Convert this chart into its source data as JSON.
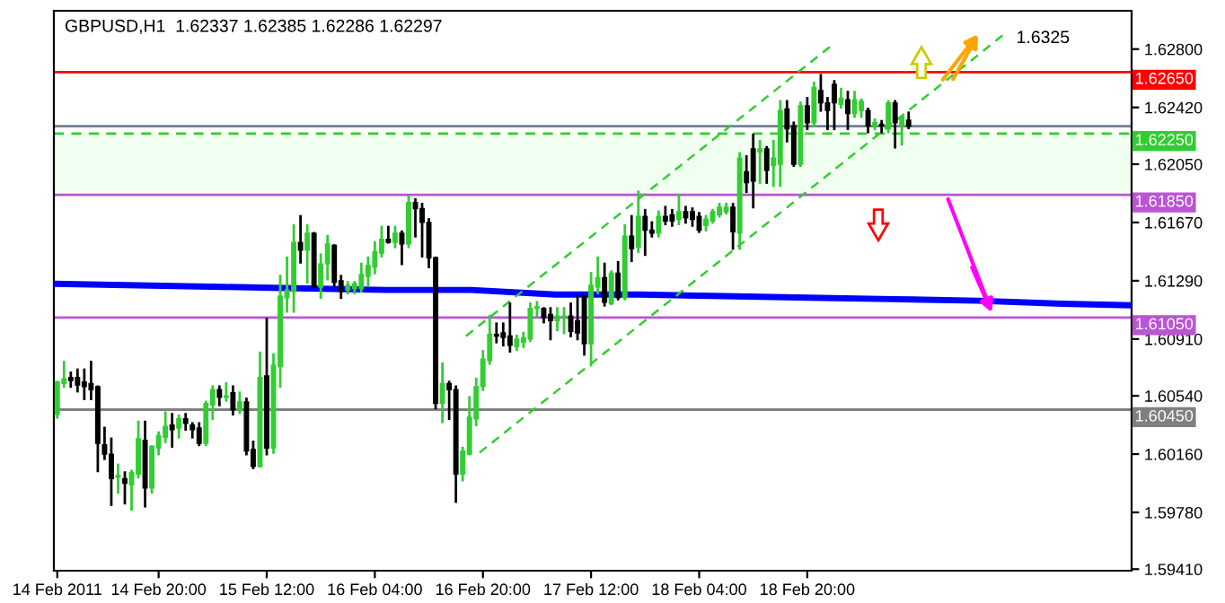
{
  "chart_data": {
    "type": "candlestick",
    "title": "GBPUSD,H1  1.62337 1.62385 1.62286 1.62297",
    "x": [
      "2011-02-14T05:00",
      "2011-02-14T06:00",
      "2011-02-14T07:00",
      "2011-02-14T08:00",
      "2011-02-14T09:00",
      "2011-02-14T10:00",
      "2011-02-14T11:00",
      "2011-02-14T12:00",
      "2011-02-14T13:00",
      "2011-02-14T14:00",
      "2011-02-14T15:00",
      "2011-02-14T16:00",
      "2011-02-14T17:00",
      "2011-02-14T18:00",
      "2011-02-14T19:00",
      "2011-02-14T20:00",
      "2011-02-14T21:00",
      "2011-02-14T22:00",
      "2011-02-14T23:00",
      "2011-02-15T00:00",
      "2011-02-15T01:00",
      "2011-02-15T02:00",
      "2011-02-15T03:00",
      "2011-02-15T04:00",
      "2011-02-15T05:00",
      "2011-02-15T06:00",
      "2011-02-15T07:00",
      "2011-02-15T08:00",
      "2011-02-15T09:00",
      "2011-02-15T10:00",
      "2011-02-15T11:00",
      "2011-02-15T12:00",
      "2011-02-15T13:00",
      "2011-02-15T14:00",
      "2011-02-15T15:00",
      "2011-02-15T16:00",
      "2011-02-15T17:00",
      "2011-02-15T18:00",
      "2011-02-15T19:00",
      "2011-02-15T20:00",
      "2011-02-15T21:00",
      "2011-02-15T22:00",
      "2011-02-15T23:00",
      "2011-02-16T00:00",
      "2011-02-16T01:00",
      "2011-02-16T02:00",
      "2011-02-16T03:00",
      "2011-02-16T04:00",
      "2011-02-16T05:00",
      "2011-02-16T06:00",
      "2011-02-16T07:00",
      "2011-02-16T08:00",
      "2011-02-16T09:00",
      "2011-02-16T10:00",
      "2011-02-16T11:00",
      "2011-02-16T12:00",
      "2011-02-16T13:00",
      "2011-02-16T14:00",
      "2011-02-16T15:00",
      "2011-02-16T16:00",
      "2011-02-16T17:00",
      "2011-02-16T18:00",
      "2011-02-16T19:00",
      "2011-02-16T20:00",
      "2011-02-16T21:00",
      "2011-02-16T22:00",
      "2011-02-16T23:00",
      "2011-02-17T00:00",
      "2011-02-17T01:00",
      "2011-02-17T02:00",
      "2011-02-17T03:00",
      "2011-02-17T04:00",
      "2011-02-17T05:00",
      "2011-02-17T06:00",
      "2011-02-17T07:00",
      "2011-02-17T08:00",
      "2011-02-17T09:00",
      "2011-02-17T10:00",
      "2011-02-17T11:00",
      "2011-02-17T12:00",
      "2011-02-17T13:00",
      "2011-02-17T14:00",
      "2011-02-17T15:00",
      "2011-02-17T16:00",
      "2011-02-17T17:00",
      "2011-02-17T18:00",
      "2011-02-17T19:00",
      "2011-02-17T20:00",
      "2011-02-17T21:00",
      "2011-02-17T22:00",
      "2011-02-17T23:00",
      "2011-02-18T00:00",
      "2011-02-18T01:00",
      "2011-02-18T02:00",
      "2011-02-18T03:00",
      "2011-02-18T04:00",
      "2011-02-18T05:00",
      "2011-02-18T06:00",
      "2011-02-18T07:00",
      "2011-02-18T08:00",
      "2011-02-18T09:00",
      "2011-02-18T10:00",
      "2011-02-18T11:00",
      "2011-02-18T12:00",
      "2011-02-18T13:00",
      "2011-02-18T14:00",
      "2011-02-18T15:00",
      "2011-02-18T16:00",
      "2011-02-18T17:00",
      "2011-02-18T18:00",
      "2011-02-18T19:00",
      "2011-02-18T20:00",
      "2011-02-18T21:00",
      "2011-02-18T22:00",
      "2011-02-18T23:00",
      "2011-02-19T00:00",
      "2011-02-19T01:00",
      "2011-02-19T02:00",
      "2011-02-19T03:00",
      "2011-02-19T04:00",
      "2011-02-19T05:00",
      "2011-02-19T06:00",
      "2011-02-19T07:00",
      "2011-02-19T08:00",
      "2011-02-19T09:00",
      "2011-02-19T10:00",
      "2011-02-19T11:00"
    ],
    "ohlc": [
      [
        1.6042,
        1.6063,
        1.604,
        1.6063
      ],
      [
        1.6062,
        1.6076,
        1.606,
        1.6065
      ],
      [
        1.6066,
        1.6069,
        1.606,
        1.6064
      ],
      [
        1.6066,
        1.6071,
        1.6057,
        1.6061
      ],
      [
        1.6063,
        1.6071,
        1.6052,
        1.606
      ],
      [
        1.6062,
        1.6076,
        1.6052,
        1.6058
      ],
      [
        1.606,
        1.606,
        1.6005,
        1.6023
      ],
      [
        1.6022,
        1.6033,
        1.6013,
        1.6016
      ],
      [
        1.6016,
        1.6026,
        1.5983,
        1.6
      ],
      [
        1.6001,
        1.6009,
        1.5991,
        1.6002
      ],
      [
        1.6,
        1.6004,
        1.5984,
        1.5997
      ],
      [
        1.5996,
        1.6005,
        1.598,
        1.6004
      ],
      [
        1.6003,
        1.6037,
        1.6001,
        1.6026
      ],
      [
        1.6025,
        1.6037,
        1.5982,
        1.5994
      ],
      [
        1.5994,
        1.6021,
        1.5991,
        1.6021
      ],
      [
        1.602,
        1.603,
        1.6016,
        1.6028
      ],
      [
        1.6027,
        1.6043,
        1.6024,
        1.6034
      ],
      [
        1.6035,
        1.6042,
        1.6021,
        1.6032
      ],
      [
        1.6033,
        1.6041,
        1.6027,
        1.6039
      ],
      [
        1.6039,
        1.6042,
        1.6032,
        1.6036
      ],
      [
        1.6035,
        1.6036,
        1.6027,
        1.6032
      ],
      [
        1.6033,
        1.6036,
        1.6022,
        1.6023
      ],
      [
        1.6023,
        1.605,
        1.6022,
        1.6049
      ],
      [
        1.6048,
        1.606,
        1.6039,
        1.6058
      ],
      [
        1.6058,
        1.606,
        1.6048,
        1.6053
      ],
      [
        1.6053,
        1.6062,
        1.6051,
        1.6054
      ],
      [
        1.6056,
        1.606,
        1.6042,
        1.6045
      ],
      [
        1.6045,
        1.6056,
        1.6043,
        1.605
      ],
      [
        1.605,
        1.6052,
        1.6016,
        1.6018
      ],
      [
        1.6019,
        1.6024,
        1.6007,
        1.6008
      ],
      [
        1.6008,
        1.6082,
        1.6008,
        1.6066
      ],
      [
        1.6067,
        1.6104,
        1.6016,
        1.602
      ],
      [
        1.602,
        1.6081,
        1.6017,
        1.6074
      ],
      [
        1.6073,
        1.6132,
        1.606,
        1.6119
      ],
      [
        1.6118,
        1.6144,
        1.6109,
        1.6123
      ],
      [
        1.6122,
        1.6165,
        1.6109,
        1.6154
      ],
      [
        1.6154,
        1.6171,
        1.6141,
        1.6149
      ],
      [
        1.6149,
        1.6165,
        1.6128,
        1.616
      ],
      [
        1.616,
        1.616,
        1.6125,
        1.6125
      ],
      [
        1.6125,
        1.6146,
        1.6118,
        1.614
      ],
      [
        1.614,
        1.6158,
        1.613,
        1.6153
      ],
      [
        1.6152,
        1.6152,
        1.6126,
        1.6128
      ],
      [
        1.6129,
        1.6132,
        1.6118,
        1.6122
      ],
      [
        1.6123,
        1.6128,
        1.6121,
        1.6126
      ],
      [
        1.6124,
        1.6128,
        1.6121,
        1.6127
      ],
      [
        1.6124,
        1.614,
        1.6122,
        1.6133
      ],
      [
        1.6132,
        1.6144,
        1.6126,
        1.6139
      ],
      [
        1.6138,
        1.6154,
        1.6134,
        1.6148
      ],
      [
        1.6147,
        1.6164,
        1.6145,
        1.6156
      ],
      [
        1.6156,
        1.6164,
        1.6154,
        1.6154
      ],
      [
        1.6154,
        1.6164,
        1.6151,
        1.616
      ],
      [
        1.616,
        1.6161,
        1.614,
        1.6153
      ],
      [
        1.6153,
        1.6184,
        1.6151,
        1.618
      ],
      [
        1.618,
        1.6182,
        1.6158,
        1.6176
      ],
      [
        1.6176,
        1.6179,
        1.6145,
        1.6167
      ],
      [
        1.6167,
        1.6169,
        1.6138,
        1.6144
      ],
      [
        1.6144,
        1.6144,
        1.6046,
        1.6049
      ],
      [
        1.6049,
        1.6075,
        1.6037,
        1.6062
      ],
      [
        1.6062,
        1.6063,
        1.6039,
        1.6058
      ],
      [
        1.6058,
        1.606,
        1.5985,
        1.6003
      ],
      [
        1.6003,
        1.602,
        1.5999,
        1.6018
      ],
      [
        1.6016,
        1.6053,
        1.6016,
        1.604
      ],
      [
        1.6039,
        1.6065,
        1.6035,
        1.606
      ],
      [
        1.606,
        1.6083,
        1.6058,
        1.6078
      ],
      [
        1.6077,
        1.6106,
        1.6075,
        1.6094
      ],
      [
        1.6094,
        1.6101,
        1.6089,
        1.6093
      ],
      [
        1.6095,
        1.6101,
        1.6087,
        1.6092
      ],
      [
        1.6093,
        1.6114,
        1.6083,
        1.6087
      ],
      [
        1.6086,
        1.6093,
        1.6084,
        1.6091
      ],
      [
        1.6089,
        1.6095,
        1.6086,
        1.6092
      ],
      [
        1.6091,
        1.6114,
        1.609,
        1.6111
      ],
      [
        1.6111,
        1.6115,
        1.6106,
        1.6112
      ],
      [
        1.6111,
        1.6111,
        1.6102,
        1.6105
      ],
      [
        1.6107,
        1.6111,
        1.6091,
        1.6103
      ],
      [
        1.6103,
        1.6111,
        1.6097,
        1.6106
      ],
      [
        1.6105,
        1.6111,
        1.6095,
        1.6106
      ],
      [
        1.6106,
        1.6114,
        1.6093,
        1.6096
      ],
      [
        1.6103,
        1.6119,
        1.6091,
        1.6095
      ],
      [
        1.6119,
        1.6119,
        1.6081,
        1.6088
      ],
      [
        1.6088,
        1.6134,
        1.6074,
        1.6126
      ],
      [
        1.6125,
        1.6144,
        1.6121,
        1.6131
      ],
      [
        1.6131,
        1.614,
        1.6113,
        1.6115
      ],
      [
        1.6114,
        1.6135,
        1.6114,
        1.6134
      ],
      [
        1.6134,
        1.6141,
        1.6117,
        1.6118
      ],
      [
        1.6118,
        1.6165,
        1.6117,
        1.6158
      ],
      [
        1.6158,
        1.6171,
        1.6142,
        1.615
      ],
      [
        1.6151,
        1.6187,
        1.6148,
        1.6171
      ],
      [
        1.6171,
        1.6175,
        1.6146,
        1.6162
      ],
      [
        1.6162,
        1.6167,
        1.6158,
        1.616
      ],
      [
        1.616,
        1.6174,
        1.6158,
        1.6171
      ],
      [
        1.6171,
        1.6177,
        1.6166,
        1.6168
      ],
      [
        1.6172,
        1.6175,
        1.6165,
        1.6168
      ],
      [
        1.6169,
        1.6185,
        1.6166,
        1.6174
      ],
      [
        1.6174,
        1.6177,
        1.6167,
        1.617
      ],
      [
        1.6174,
        1.6176,
        1.6165,
        1.6169
      ],
      [
        1.6171,
        1.6173,
        1.6161,
        1.6162
      ],
      [
        1.6165,
        1.6171,
        1.6162,
        1.6169
      ],
      [
        1.6168,
        1.6175,
        1.6167,
        1.6174
      ],
      [
        1.6172,
        1.6179,
        1.6171,
        1.6177
      ],
      [
        1.6174,
        1.6179,
        1.6173,
        1.6177
      ],
      [
        1.6177,
        1.6179,
        1.615,
        1.6161
      ],
      [
        1.616,
        1.6212,
        1.615,
        1.6209
      ],
      [
        1.62,
        1.621,
        1.6187,
        1.6193
      ],
      [
        1.6215,
        1.6224,
        1.6177,
        1.6194
      ],
      [
        1.6213,
        1.622,
        1.6193,
        1.6215
      ],
      [
        1.6215,
        1.6216,
        1.6193,
        1.6201
      ],
      [
        1.6204,
        1.622,
        1.6191,
        1.6209
      ],
      [
        1.6205,
        1.6246,
        1.6191,
        1.624
      ],
      [
        1.6241,
        1.6246,
        1.622,
        1.6228
      ],
      [
        1.623,
        1.6232,
        1.6204,
        1.6205
      ],
      [
        1.6205,
        1.6245,
        1.6204,
        1.6243
      ],
      [
        1.6243,
        1.6248,
        1.6228,
        1.6232
      ],
      [
        1.6232,
        1.6258,
        1.623,
        1.6255
      ],
      [
        1.6253,
        1.6263,
        1.624,
        1.6245
      ],
      [
        1.6245,
        1.6248,
        1.6228,
        1.624
      ],
      [
        1.6257,
        1.6259,
        1.6228,
        1.6245
      ],
      [
        1.6244,
        1.6254,
        1.6242,
        1.6248
      ],
      [
        1.6247,
        1.6252,
        1.6228,
        1.6238
      ],
      [
        1.6238,
        1.6252,
        1.6236,
        1.6247
      ],
      [
        1.624,
        1.6247,
        1.6236,
        1.6246
      ],
      [
        1.624,
        1.6241,
        1.6226,
        1.623
      ],
      [
        1.623,
        1.6234,
        1.6228,
        1.6232
      ],
      [
        1.6231,
        1.6233,
        1.6226,
        1.623
      ],
      [
        1.6228,
        1.6246,
        1.6226,
        1.6245
      ],
      [
        1.6245,
        1.6246,
        1.6216,
        1.6232
      ],
      [
        1.623,
        1.6236,
        1.6218,
        1.6236
      ],
      [
        1.62337,
        1.62385,
        1.62286,
        1.62297
      ]
    ],
    "series": [
      {
        "type": "line",
        "color": "#0000ff",
        "x": [
          "2011-02-14T04:30",
          "2011-02-14T17:00",
          "2011-02-15T05:30",
          "2011-02-15T18:00",
          "2011-02-16T05:45",
          "2011-02-16T18:15",
          "2011-02-17T06:45",
          "2011-02-17T19:15",
          "2011-02-18T07:45",
          "2011-02-18T20:15",
          "2011-02-19T08:45",
          "2011-02-19T21:15",
          "2011-02-20T09:45",
          "2011-02-20T19:45"
        ],
        "values": [
          1.6127,
          1.6126,
          1.6125,
          1.6124,
          1.6123,
          1.6123,
          1.612,
          1.612,
          1.6119,
          1.6118,
          1.6117,
          1.6116,
          1.6114,
          1.6113
        ]
      },
      {
        "type": "line",
        "color": "#32cd32",
        "line_style": "dashed",
        "x": [
          "2011-02-16T17:30",
          "2011-02-18T23:30"
        ],
        "values": [
          1.6093,
          1.6282
        ]
      },
      {
        "type": "line",
        "color": "#32cd32",
        "line_style": "dashed",
        "x": [
          "2011-02-16T19:30",
          "2011-02-20T01:30"
        ],
        "values": [
          1.6017,
          1.6291
        ]
      }
    ],
    "xlim": [
      "2011-02-14T04:30",
      "2011-02-20T20:00"
    ],
    "ylim": [
      1.594,
      1.6305
    ],
    "xticks": [
      {
        "value": "2011-02-14T05:00",
        "label": "14 Feb 2011"
      },
      {
        "value": "2011-02-14T20:00",
        "label": "14 Feb 20:00"
      },
      {
        "value": "2011-02-15T12:00",
        "label": "15 Feb 12:00"
      },
      {
        "value": "2011-02-16T04:00",
        "label": "16 Feb 04:00"
      },
      {
        "value": "2011-02-16T20:00",
        "label": "16 Feb 20:00"
      },
      {
        "value": "2011-02-17T12:00",
        "label": "17 Feb 12:00"
      },
      {
        "value": "2011-02-18T04:00",
        "label": "18 Feb 04:00"
      },
      {
        "value": "2011-02-18T20:00",
        "label": "18 Feb 20:00"
      }
    ],
    "yticks": [
      {
        "value": 1.628,
        "label": "1.62800"
      },
      {
        "value": 1.6242,
        "label": "1.62420"
      },
      {
        "value": 1.6205,
        "label": "1.62050"
      },
      {
        "value": 1.6167,
        "label": "1.61670"
      },
      {
        "value": 1.6129,
        "label": "1.61290"
      },
      {
        "value": 1.6091,
        "label": "1.60910"
      },
      {
        "value": 1.6054,
        "label": "1.60540"
      },
      {
        "value": 1.6016,
        "label": "1.60160"
      },
      {
        "value": 1.5978,
        "label": "1.59780"
      },
      {
        "value": 1.5941,
        "label": "1.59410"
      }
    ],
    "ref_lines": [
      {
        "axis": "y",
        "value": 1.6265,
        "label": "1.62650",
        "color": "#ff0000"
      },
      {
        "axis": "y",
        "value": 1.62297,
        "color": "#708090"
      },
      {
        "axis": "y",
        "value": 1.6225,
        "label": "1.62250",
        "color": "#32cd32",
        "line_style": "dashed"
      },
      {
        "axis": "y",
        "value": 1.6185,
        "label": "1.61850",
        "color": "#ba55d3"
      },
      {
        "axis": "y",
        "value": 1.6105,
        "label": "1.61050",
        "color": "#ba55d3"
      },
      {
        "axis": "y",
        "value": 1.6045,
        "label": "1.60450",
        "color": "#808080"
      }
    ],
    "bands": [
      {
        "axis": "y",
        "from": 1.6187,
        "to": 1.6225,
        "color": "#f0fff0"
      }
    ],
    "annotations": [
      "1.6325"
    ],
    "grid": false,
    "legend": false
  }
}
